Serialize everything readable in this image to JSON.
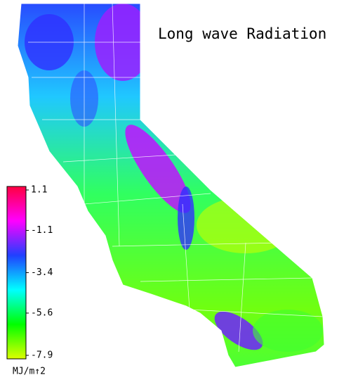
{
  "title": "Long wave Radiation",
  "colorbar": {
    "label": "MJ/m↑2",
    "lim": [
      -7.9,
      1.1
    ],
    "ticks": [
      1.1,
      -1.1,
      -3.4,
      -5.6,
      -7.9
    ],
    "colors": [
      "#ddff00",
      "#00ff00",
      "#00ffff",
      "#2040ff",
      "#ff00ff",
      "#ff0040"
    ]
  }
}
